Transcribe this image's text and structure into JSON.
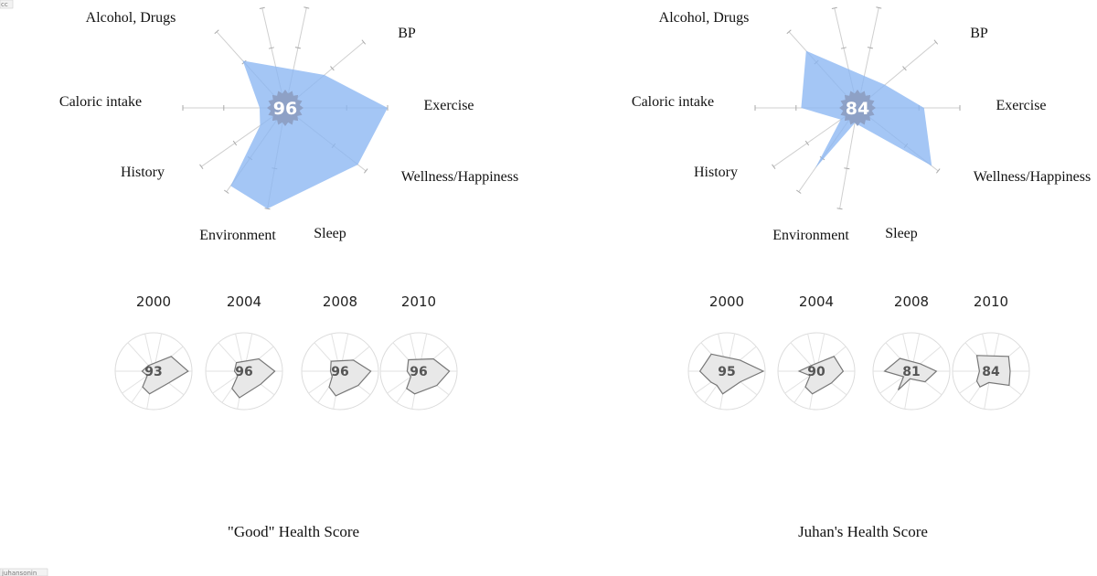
{
  "corner_badge": "cc",
  "credit": "juhansonin",
  "chart_data": [
    {
      "type": "radar",
      "title": "\"Good\" Health Score",
      "score": "96",
      "axes": [
        "Alcohol, Drugs",
        "BP",
        "Exercise",
        "Wellness/Happiness",
        "Sleep",
        "Environment",
        "History",
        "Caloric intake"
      ],
      "values": [
        0.62,
        0.5,
        1.0,
        0.9,
        1.0,
        0.93,
        0.3,
        0.25
      ],
      "max": 1,
      "history": [
        {
          "year": "2000",
          "score": "93",
          "values": [
            0.2,
            0.6,
            0.9,
            0.5,
            0.6,
            0.5,
            0.2,
            0.3
          ]
        },
        {
          "year": "2004",
          "score": "96",
          "values": [
            0.3,
            0.5,
            0.8,
            0.55,
            0.7,
            0.55,
            0.2,
            0.25
          ]
        },
        {
          "year": "2008",
          "score": "96",
          "values": [
            0.35,
            0.45,
            0.8,
            0.6,
            0.65,
            0.5,
            0.25,
            0.25
          ]
        },
        {
          "year": "2010",
          "score": "96",
          "values": [
            0.4,
            0.5,
            0.8,
            0.6,
            0.6,
            0.55,
            0.25,
            0.3
          ]
        }
      ]
    },
    {
      "type": "radar",
      "title": "Juhan's Health Score",
      "score": "84",
      "axes": [
        "Alcohol, Drugs",
        "BP",
        "Exercise",
        "Wellness/Happiness",
        "Sleep",
        "Environment",
        "History",
        "Caloric intake"
      ],
      "values": [
        0.75,
        0.35,
        0.65,
        0.92,
        0.15,
        0.72,
        0.2,
        0.55
      ],
      "max": 1,
      "history": [
        {
          "year": "2000",
          "score": "95",
          "values": [
            0.6,
            0.45,
            0.95,
            0.45,
            0.6,
            0.45,
            0.5,
            0.7
          ]
        },
        {
          "year": "2004",
          "score": "90",
          "values": [
            0.2,
            0.6,
            0.7,
            0.5,
            0.6,
            0.5,
            0.2,
            0.45
          ]
        },
        {
          "year": "2008",
          "score": "81",
          "values": [
            0.45,
            0.3,
            0.65,
            0.45,
            0.2,
            0.6,
            0.25,
            0.7
          ]
        },
        {
          "year": "2010",
          "score": "84",
          "values": [
            0.55,
            0.6,
            0.5,
            0.6,
            0.3,
            0.5,
            0.45,
            0.3
          ]
        }
      ]
    }
  ],
  "colors": {
    "fill": "#8bb6f2",
    "axis": "#cfcfcf",
    "badge": "#8ea1c6",
    "mini_fill": "#e8e8e8",
    "mini_stroke": "#777777"
  }
}
